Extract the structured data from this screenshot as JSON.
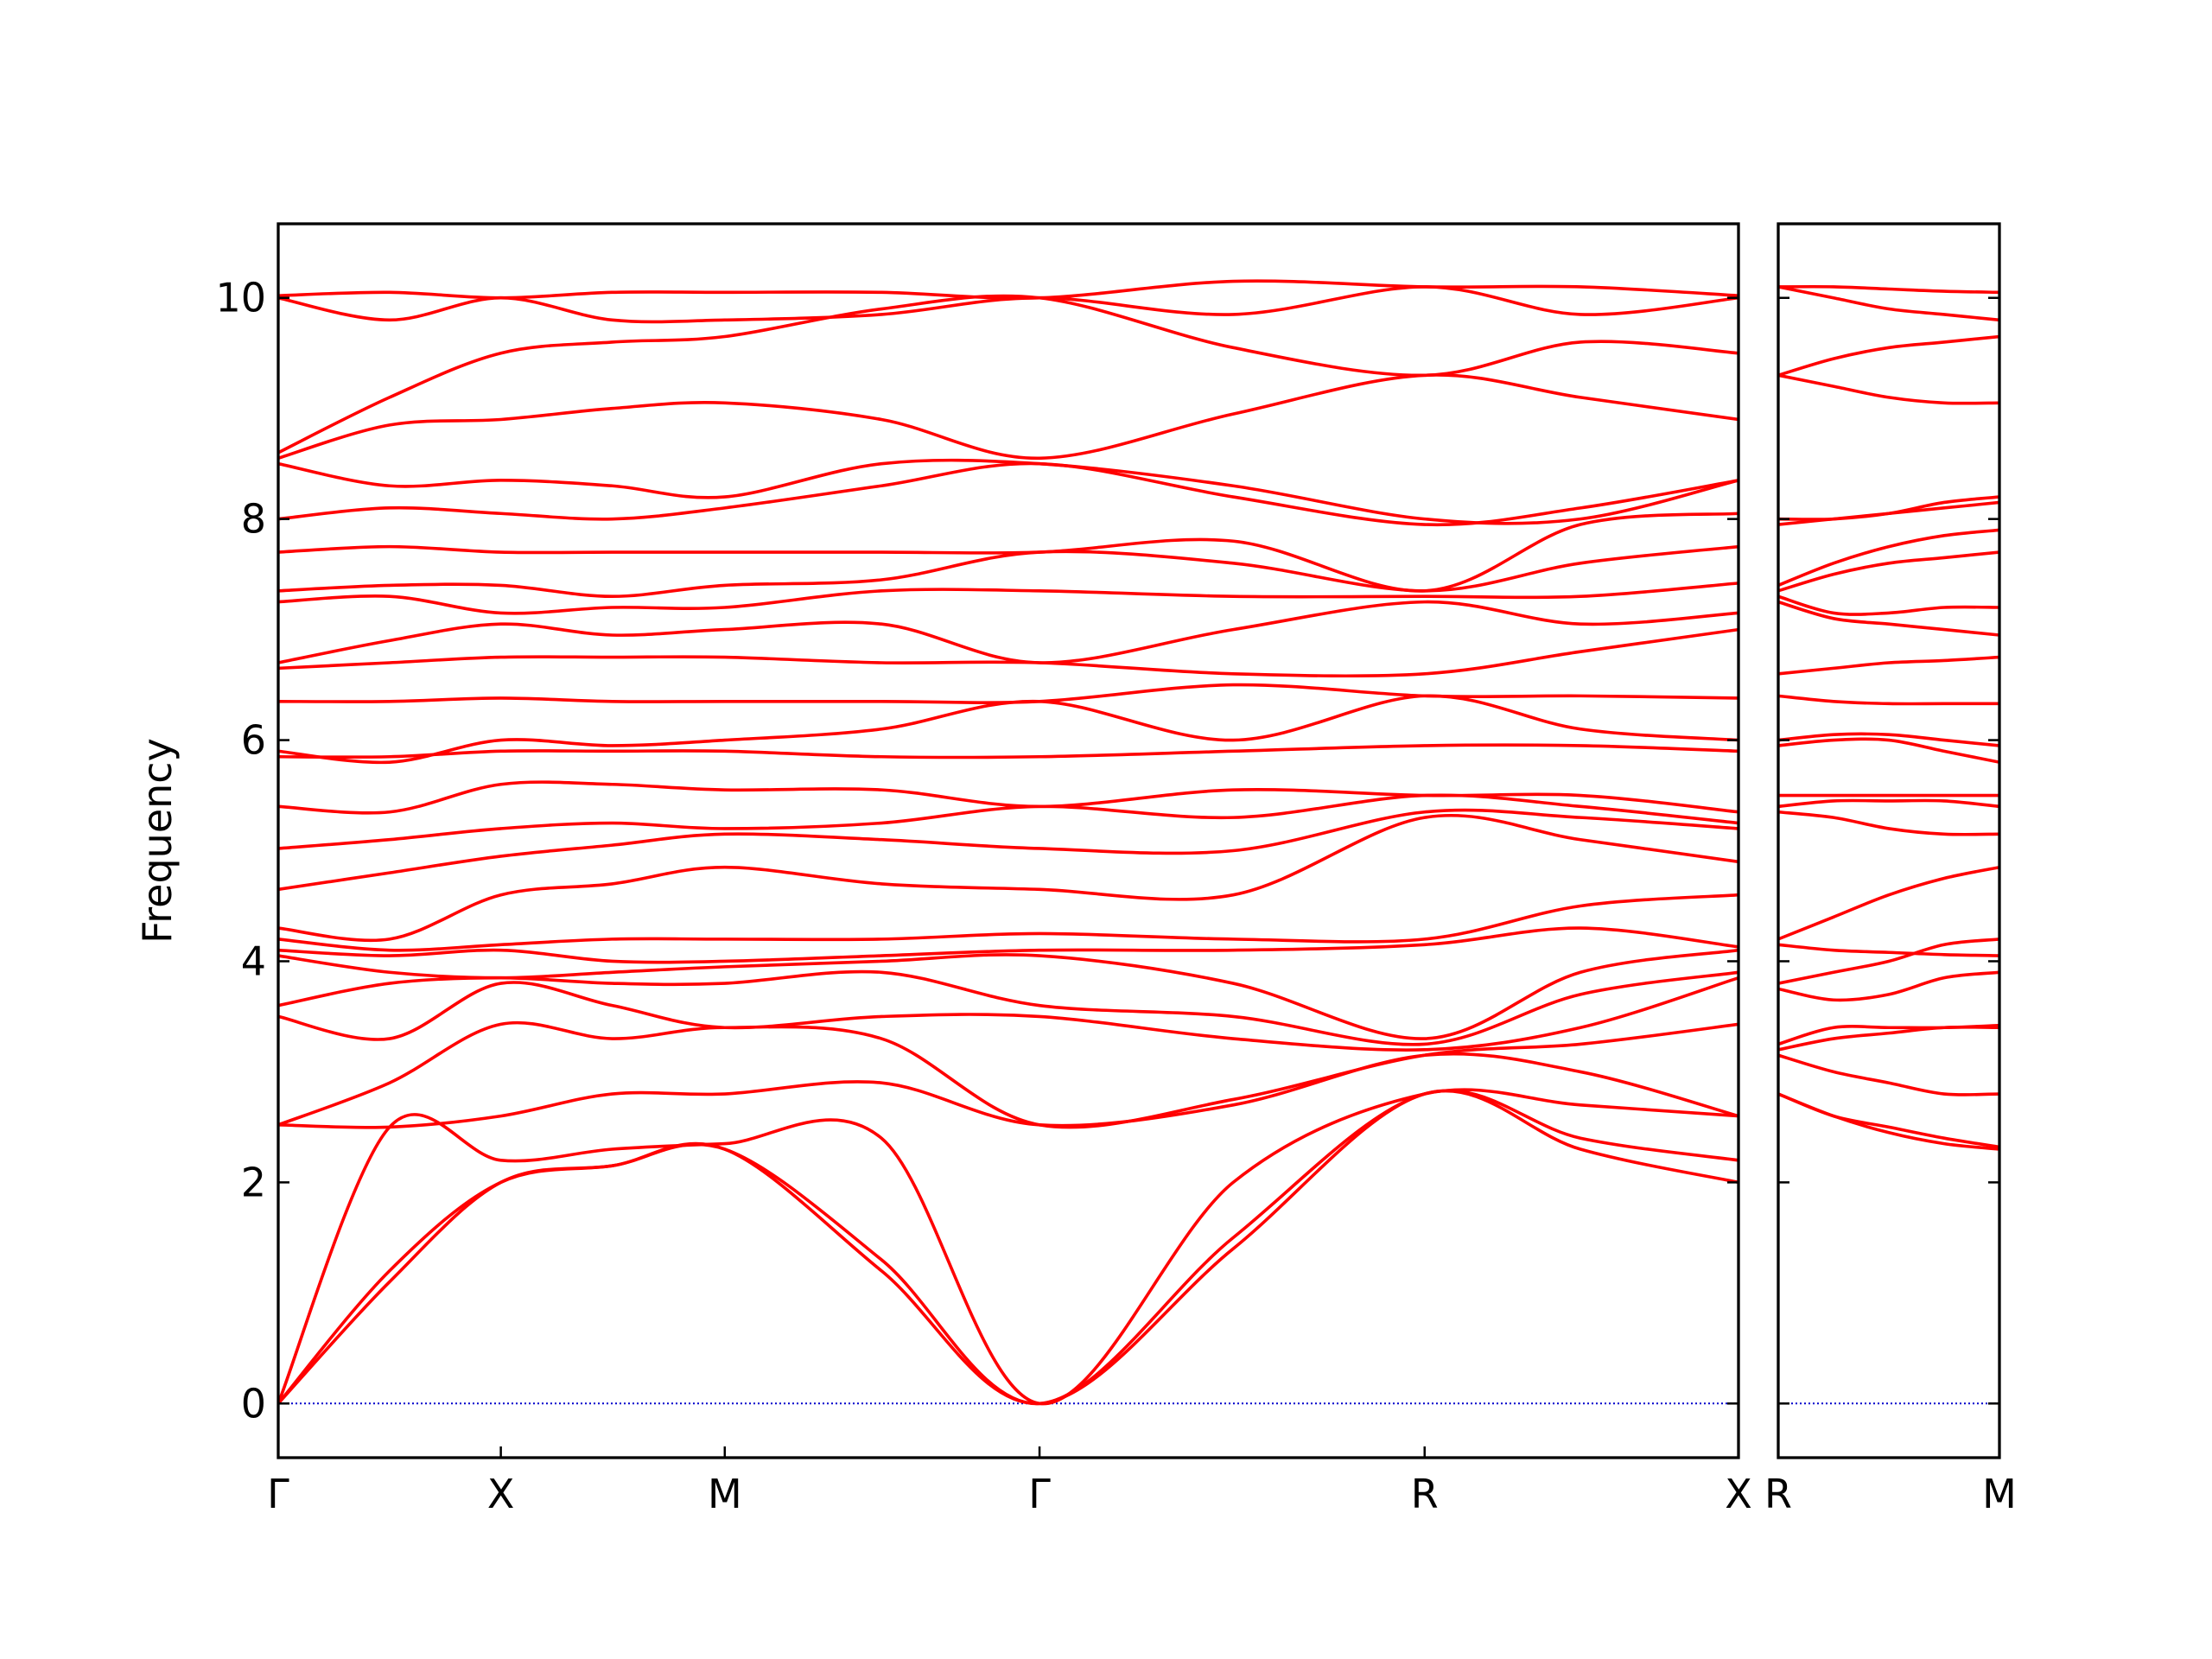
{
  "chart_data": [
    {
      "type": "line",
      "ylabel": "Frequency",
      "color": "#ff0000",
      "ylim": [
        -0.49,
        10.67
      ],
      "yticks": [
        0,
        2,
        4,
        6,
        8,
        10
      ],
      "xlim": [
        0,
        6.56
      ],
      "xticks": [
        {
          "value": 0,
          "label": "Γ"
        },
        {
          "value": 1,
          "label": "X"
        },
        {
          "value": 2.006,
          "label": "M"
        },
        {
          "value": 3.42,
          "label": "Γ"
        },
        {
          "value": 5.15,
          "label": "R"
        },
        {
          "value": 6.56,
          "label": "X"
        }
      ],
      "hline": 0,
      "hline_color": "#0000cc",
      "x": [
        0,
        0.5,
        1,
        1.5,
        2.006,
        2.71,
        3.42,
        4.29,
        5.15,
        5.85,
        6.56
      ],
      "series": [
        {
          "values": [
            0,
            1.1,
            2.0,
            2.15,
            2.3,
            1.2,
            0,
            1.4,
            2.8,
            2.3,
            2.0
          ]
        },
        {
          "values": [
            0,
            1.2,
            2.0,
            2.15,
            2.3,
            1.3,
            0,
            1.5,
            2.8,
            2.4,
            2.2
          ]
        },
        {
          "values": [
            0,
            2.5,
            2.2,
            2.3,
            2.35,
            2.4,
            0,
            2.0,
            2.8,
            2.7,
            2.6
          ]
        },
        {
          "values": [
            2.52,
            2.5,
            2.6,
            2.8,
            2.8,
            2.9,
            2.52,
            2.7,
            3.15,
            3.0,
            2.6
          ]
        },
        {
          "values": [
            2.52,
            2.9,
            3.43,
            3.3,
            3.4,
            3.3,
            2.52,
            2.75,
            3.15,
            3.25,
            3.43
          ]
        },
        {
          "values": [
            3.5,
            3.3,
            3.8,
            3.6,
            3.4,
            3.5,
            3.5,
            3.3,
            3.2,
            3.4,
            3.85
          ]
        },
        {
          "values": [
            3.6,
            3.8,
            3.85,
            3.8,
            3.8,
            3.9,
            3.6,
            3.5,
            3.25,
            3.7,
            3.9
          ]
        },
        {
          "values": [
            4.05,
            3.9,
            3.85,
            3.9,
            3.95,
            4.0,
            4.05,
            3.8,
            3.3,
            3.9,
            4.1
          ]
        },
        {
          "values": [
            4.1,
            4.05,
            4.1,
            4.0,
            4.0,
            4.05,
            4.1,
            4.1,
            4.15,
            4.3,
            4.13
          ]
        },
        {
          "values": [
            4.2,
            4.1,
            4.15,
            4.2,
            4.2,
            4.2,
            4.25,
            4.2,
            4.2,
            4.5,
            4.6
          ]
        },
        {
          "values": [
            4.3,
            4.2,
            4.6,
            4.7,
            4.85,
            4.7,
            4.65,
            4.6,
            5.3,
            5.1,
            4.9
          ]
        },
        {
          "values": [
            4.65,
            4.8,
            4.95,
            5.05,
            5.15,
            5.1,
            5.02,
            5.0,
            5.35,
            5.3,
            5.2
          ]
        },
        {
          "values": [
            5.02,
            5.1,
            5.2,
            5.25,
            5.2,
            5.25,
            5.4,
            5.3,
            5.5,
            5.4,
            5.25
          ]
        },
        {
          "values": [
            5.4,
            5.35,
            5.6,
            5.6,
            5.55,
            5.55,
            5.4,
            5.55,
            5.5,
            5.5,
            5.35
          ]
        },
        {
          "values": [
            5.85,
            5.85,
            5.9,
            5.9,
            5.9,
            5.85,
            5.85,
            5.9,
            5.95,
            5.95,
            5.9
          ]
        },
        {
          "values": [
            5.9,
            5.8,
            6.0,
            5.95,
            6.0,
            6.1,
            6.35,
            6.0,
            6.4,
            6.1,
            6.0
          ]
        },
        {
          "values": [
            6.35,
            6.35,
            6.38,
            6.35,
            6.35,
            6.35,
            6.35,
            6.5,
            6.4,
            6.4,
            6.38
          ]
        },
        {
          "values": [
            6.65,
            6.7,
            6.75,
            6.75,
            6.75,
            6.7,
            6.7,
            6.6,
            6.6,
            6.8,
            7.0
          ]
        },
        {
          "values": [
            6.7,
            6.9,
            7.05,
            6.95,
            7.0,
            7.05,
            6.7,
            7.0,
            7.25,
            7.05,
            7.15
          ]
        },
        {
          "values": [
            7.25,
            7.3,
            7.15,
            7.2,
            7.2,
            7.35,
            7.35,
            7.3,
            7.3,
            7.3,
            7.42
          ]
        },
        {
          "values": [
            7.35,
            7.4,
            7.4,
            7.3,
            7.4,
            7.45,
            7.7,
            7.6,
            7.35,
            7.6,
            7.75
          ]
        },
        {
          "values": [
            7.7,
            7.75,
            7.7,
            7.7,
            7.7,
            7.7,
            7.7,
            7.8,
            7.35,
            7.95,
            8.05
          ]
        },
        {
          "values": [
            8.0,
            8.1,
            8.05,
            8.0,
            8.1,
            8.3,
            8.5,
            8.2,
            7.95,
            8.1,
            8.35
          ]
        },
        {
          "values": [
            8.5,
            8.3,
            8.35,
            8.3,
            8.2,
            8.5,
            8.5,
            8.3,
            8.0,
            8.0,
            8.35
          ]
        },
        {
          "values": [
            8.55,
            8.85,
            8.9,
            9.0,
            9.05,
            8.9,
            8.55,
            8.95,
            9.3,
            9.1,
            8.9
          ]
        },
        {
          "values": [
            8.6,
            9.1,
            9.5,
            9.6,
            9.65,
            9.9,
            10.0,
            9.55,
            9.3,
            9.6,
            9.5
          ]
        },
        {
          "values": [
            10.0,
            9.8,
            10.0,
            9.8,
            9.8,
            9.85,
            10.0,
            9.85,
            10.1,
            9.85,
            10.0
          ]
        },
        {
          "values": [
            10.02,
            10.05,
            10.0,
            10.05,
            10.05,
            10.05,
            10.0,
            10.15,
            10.1,
            10.1,
            10.02
          ]
        }
      ]
    },
    {
      "type": "line",
      "color": "#ff0000",
      "sharey": true,
      "ylim": [
        -0.49,
        10.67
      ],
      "xlim": [
        0,
        1
      ],
      "xticks": [
        {
          "value": 0,
          "label": "R"
        },
        {
          "value": 1,
          "label": "M"
        }
      ],
      "hline": 0,
      "hline_color": "#0000cc",
      "x": [
        0,
        0.25,
        0.5,
        0.75,
        1
      ],
      "series": [
        {
          "values": [
            2.8,
            2.6,
            2.45,
            2.35,
            2.3
          ]
        },
        {
          "values": [
            2.8,
            2.6,
            2.5,
            2.4,
            2.32
          ]
        },
        {
          "values": [
            3.15,
            3.0,
            2.9,
            2.8,
            2.8
          ]
        },
        {
          "values": [
            3.2,
            3.3,
            3.35,
            3.4,
            3.4
          ]
        },
        {
          "values": [
            3.25,
            3.4,
            3.4,
            3.4,
            3.42
          ]
        },
        {
          "values": [
            3.75,
            3.65,
            3.7,
            3.85,
            3.9
          ]
        },
        {
          "values": [
            3.8,
            3.9,
            4.0,
            4.15,
            4.2
          ]
        },
        {
          "values": [
            4.15,
            4.1,
            4.08,
            4.06,
            4.05
          ]
        },
        {
          "values": [
            4.2,
            4.4,
            4.6,
            4.75,
            4.85
          ]
        },
        {
          "values": [
            5.35,
            5.3,
            5.2,
            5.15,
            5.15
          ]
        },
        {
          "values": [
            5.4,
            5.45,
            5.45,
            5.45,
            5.4
          ]
        },
        {
          "values": [
            5.5,
            5.5,
            5.5,
            5.5,
            5.5
          ]
        },
        {
          "values": [
            5.95,
            6.0,
            6.0,
            5.9,
            5.8
          ]
        },
        {
          "values": [
            6.0,
            6.05,
            6.05,
            6.0,
            5.95
          ]
        },
        {
          "values": [
            6.4,
            6.35,
            6.33,
            6.33,
            6.33
          ]
        },
        {
          "values": [
            6.6,
            6.65,
            6.7,
            6.72,
            6.75
          ]
        },
        {
          "values": [
            7.25,
            7.1,
            7.05,
            7.0,
            6.95
          ]
        },
        {
          "values": [
            7.3,
            7.15,
            7.15,
            7.2,
            7.2
          ]
        },
        {
          "values": [
            7.35,
            7.5,
            7.6,
            7.65,
            7.7
          ]
        },
        {
          "values": [
            7.4,
            7.6,
            7.75,
            7.85,
            7.9
          ]
        },
        {
          "values": [
            7.95,
            8.0,
            8.05,
            8.1,
            8.15
          ]
        },
        {
          "values": [
            8.0,
            8.0,
            8.05,
            8.15,
            8.2
          ]
        },
        {
          "values": [
            9.3,
            9.2,
            9.1,
            9.05,
            9.05
          ]
        },
        {
          "values": [
            9.3,
            9.45,
            9.55,
            9.6,
            9.65
          ]
        },
        {
          "values": [
            10.1,
            10.0,
            9.9,
            9.85,
            9.8
          ]
        },
        {
          "values": [
            10.1,
            10.1,
            10.08,
            10.06,
            10.05
          ]
        }
      ]
    }
  ]
}
